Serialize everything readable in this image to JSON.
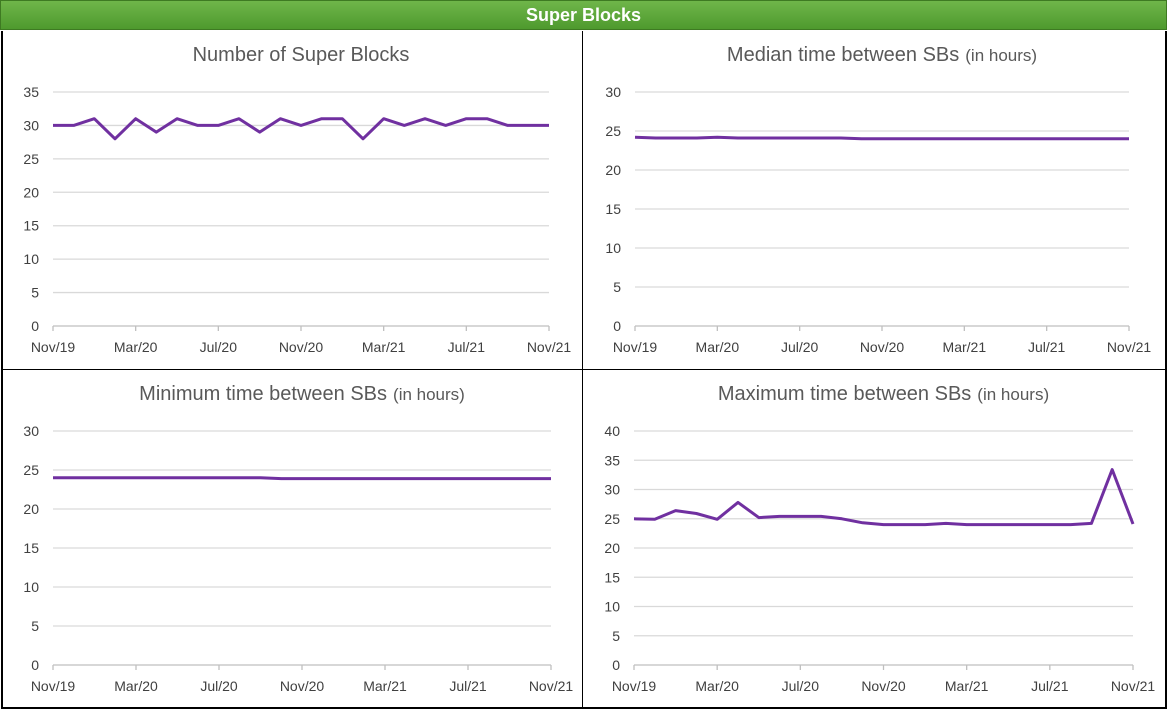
{
  "header": {
    "title": "Super Blocks"
  },
  "colors": {
    "header_bg": "#5aa83a",
    "line": "#7030a0",
    "grid": "#d9d9d9",
    "text": "#595959"
  },
  "chart_data": [
    {
      "type": "line",
      "title": "Number of Super Blocks",
      "title_suffix": "",
      "x_tick_labels": [
        "Nov/19",
        "Mar/20",
        "Jul/20",
        "Nov/20",
        "Mar/21",
        "Jul/21",
        "Nov/21"
      ],
      "x_count": 25,
      "ylim": [
        0,
        35
      ],
      "y_ticks": [
        0,
        5,
        10,
        15,
        20,
        25,
        30,
        35
      ],
      "grid": true,
      "series": [
        {
          "values": [
            30,
            30,
            31,
            28,
            31,
            29,
            31,
            30,
            30,
            31,
            29,
            31,
            30,
            31,
            31,
            28,
            31,
            30,
            31,
            30,
            31,
            31,
            30,
            30,
            30
          ]
        }
      ]
    },
    {
      "type": "line",
      "title": "Median time between SBs",
      "title_suffix": "(in hours)",
      "x_tick_labels": [
        "Nov/19",
        "Mar/20",
        "Jul/20",
        "Nov/20",
        "Mar/21",
        "Jul/21",
        "Nov/21"
      ],
      "x_count": 25,
      "ylim": [
        0,
        30
      ],
      "y_ticks": [
        0,
        5,
        10,
        15,
        20,
        25,
        30
      ],
      "grid": true,
      "series": [
        {
          "values": [
            24.2,
            24.1,
            24.1,
            24.1,
            24.2,
            24.1,
            24.1,
            24.1,
            24.1,
            24.1,
            24.1,
            24.0,
            24.0,
            24.0,
            24.0,
            24.0,
            24.0,
            24.0,
            24.0,
            24.0,
            24.0,
            24.0,
            24.0,
            24.0,
            24.0
          ]
        }
      ]
    },
    {
      "type": "line",
      "title": "Minimum time between SBs",
      "title_suffix": "(in hours)",
      "x_tick_labels": [
        "Nov/19",
        "Mar/20",
        "Jul/20",
        "Nov/20",
        "Mar/21",
        "Jul/21",
        "Nov/21"
      ],
      "x_count": 25,
      "ylim": [
        0,
        30
      ],
      "y_ticks": [
        0,
        5,
        10,
        15,
        20,
        25,
        30
      ],
      "grid": true,
      "series": [
        {
          "values": [
            24.0,
            24.0,
            24.0,
            24.0,
            24.0,
            24.0,
            24.0,
            24.0,
            24.0,
            24.0,
            24.0,
            23.9,
            23.9,
            23.9,
            23.9,
            23.9,
            23.9,
            23.9,
            23.9,
            23.9,
            23.9,
            23.9,
            23.9,
            23.9,
            23.9
          ]
        }
      ]
    },
    {
      "type": "line",
      "title": "Maximum time  between SBs",
      "title_suffix": "(in hours)",
      "x_tick_labels": [
        "Nov/19",
        "Mar/20",
        "Jul/20",
        "Nov/20",
        "Mar/21",
        "Jul/21",
        "Nov/21"
      ],
      "x_count": 25,
      "ylim": [
        0,
        40
      ],
      "y_ticks": [
        0,
        5,
        10,
        15,
        20,
        25,
        30,
        35,
        40
      ],
      "grid": true,
      "series": [
        {
          "values": [
            25.0,
            24.9,
            26.4,
            25.9,
            24.9,
            27.8,
            25.2,
            25.4,
            25.4,
            25.4,
            25.0,
            24.3,
            24.0,
            24.0,
            24.0,
            24.2,
            24.0,
            24.0,
            24.0,
            24.0,
            24.0,
            24.0,
            24.2,
            33.4,
            24.1
          ]
        }
      ]
    }
  ]
}
